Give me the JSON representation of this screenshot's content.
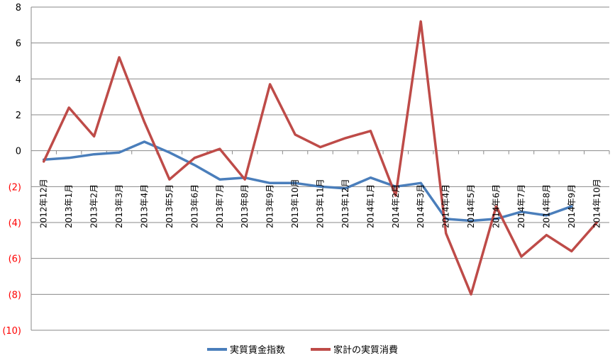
{
  "chart_data": {
    "type": "line",
    "title": "",
    "xlabel": "",
    "ylabel": "",
    "ylim": [
      -10,
      8
    ],
    "y_ticks": [
      {
        "label": "8",
        "value": 8,
        "negative": false
      },
      {
        "label": "6",
        "value": 6,
        "negative": false
      },
      {
        "label": "4",
        "value": 4,
        "negative": false
      },
      {
        "label": "2",
        "value": 2,
        "negative": false
      },
      {
        "label": "0",
        "value": 0,
        "negative": false
      },
      {
        "label": "(2)",
        "value": -2,
        "negative": true
      },
      {
        "label": "(4)",
        "value": -4,
        "negative": true
      },
      {
        "label": "(6)",
        "value": -6,
        "negative": true
      },
      {
        "label": "(8)",
        "value": -8,
        "negative": true
      },
      {
        "label": "(10)",
        "value": -10,
        "negative": true
      }
    ],
    "categories": [
      "2012年12月",
      "2013年1月",
      "2013年2月",
      "2013年3月",
      "2013年4月",
      "2013年5月",
      "2013年6月",
      "2013年7月",
      "2013年8月",
      "2013年9月",
      "2013年10月",
      "2013年11月",
      "2013年12月",
      "2014年1月",
      "2014年2月",
      "2014年3月",
      "2014年4月",
      "2014年5月",
      "2014年6月",
      "2014年7月",
      "2014年8月",
      "2014年9月",
      "2014年10月"
    ],
    "series": [
      {
        "name": "実質賃金指数",
        "color": "#4a7ebb",
        "values": [
          -0.5,
          -0.4,
          -0.2,
          -0.1,
          0.5,
          -0.1,
          -0.8,
          -1.6,
          -1.5,
          -1.8,
          -1.8,
          -2.0,
          -2.1,
          -1.5,
          -2.0,
          -1.8,
          -3.8,
          -3.9,
          -3.8,
          -3.4,
          -3.6,
          -3.1,
          null
        ]
      },
      {
        "name": "家計の実質消費",
        "color": "#be4b48",
        "values": [
          -0.6,
          2.4,
          0.8,
          5.2,
          1.6,
          -1.6,
          -0.4,
          0.1,
          -1.6,
          3.7,
          0.9,
          0.2,
          0.7,
          1.1,
          -2.5,
          7.2,
          -4.6,
          -8.0,
          -3.1,
          -5.9,
          -4.7,
          -5.6,
          -4.0
        ]
      }
    ],
    "grid": true,
    "legend_position": "bottom"
  },
  "colors": {
    "gridline": "#8a8a8a",
    "axis": "#8a8a8a",
    "negative_tick": "#ff0000",
    "positive_tick": "#000000"
  }
}
